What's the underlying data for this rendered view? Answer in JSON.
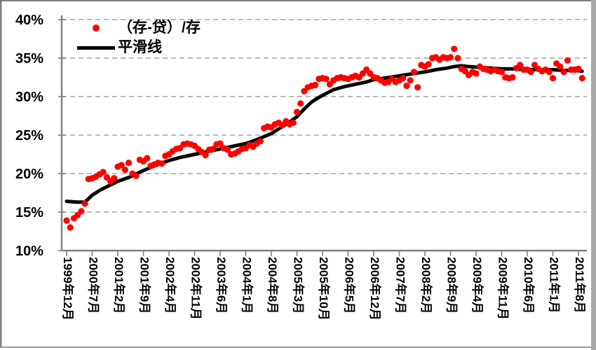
{
  "colors": {
    "scatter": "#ff0000",
    "smooth_line": "#000000",
    "gridline": "#a3a3a3",
    "axis": "#808080",
    "text": "#000000",
    "frame_border": "#7f7f7f",
    "frame_right_bar": "#a9a9a9",
    "background": "#ffffff"
  },
  "legend": {
    "scatter_label": "（存-贷）/存",
    "line_label": "平滑线"
  },
  "chart_data": {
    "type": "scatter",
    "title": "",
    "xlabel": "",
    "ylabel": "",
    "grid": "dashed-horizontal",
    "legend_position": "top-left",
    "y_axis": {
      "unit": "%",
      "min": 10,
      "max": 40,
      "tick_step": 5,
      "tick_labels": [
        "40%",
        "35%",
        "30%",
        "25%",
        "20%",
        "15%",
        "10%"
      ],
      "tick_values": [
        40,
        35,
        30,
        25,
        20,
        15,
        10
      ],
      "gridline_values": [
        40,
        35,
        30,
        25,
        20,
        15
      ]
    },
    "x_axis": {
      "tick_labels": [
        "1999年12月",
        "2000年7月",
        "2001年2月",
        "2001年9月",
        "2002年4月",
        "2002年11月",
        "2003年6月",
        "2004年1月",
        "2004年8月",
        "2005年3月",
        "2005年10月",
        "2006年5月",
        "2006年12月",
        "2007年7月",
        "2008年2月",
        "2008年9月",
        "2009年4月",
        "2009年11月",
        "2010年6月",
        "2011年1月",
        "2011年8月"
      ],
      "months_per_tick": 7,
      "label_rotation_deg": 90
    },
    "series": [
      {
        "name": "（存-贷）/存",
        "type": "scatter",
        "color": "#ff0000",
        "start_month": "1999年12月",
        "frequency": "monthly",
        "values_pct": [
          13.9,
          13.0,
          14.2,
          14.6,
          15.1,
          16.1,
          19.3,
          19.4,
          19.6,
          19.9,
          20.2,
          19.5,
          19.0,
          19.4,
          20.9,
          21.1,
          20.5,
          21.4,
          20.0,
          19.7,
          21.8,
          21.6,
          22.0,
          21.0,
          21.2,
          21.4,
          21.3,
          22.3,
          22.5,
          22.9,
          23.2,
          23.3,
          23.8,
          23.9,
          23.8,
          23.6,
          23.2,
          22.8,
          22.4,
          23.1,
          23.2,
          23.8,
          23.9,
          23.3,
          23.1,
          22.5,
          22.6,
          22.9,
          23.2,
          23.3,
          23.7,
          23.5,
          23.9,
          24.2,
          25.9,
          26.1,
          26.0,
          26.4,
          26.6,
          26.3,
          26.8,
          26.4,
          26.6,
          28.0,
          29.1,
          30.7,
          31.2,
          31.4,
          31.5,
          32.3,
          32.4,
          32.3,
          31.6,
          32.1,
          32.4,
          32.5,
          32.4,
          32.3,
          32.5,
          32.7,
          32.5,
          33.0,
          33.5,
          33.0,
          32.5,
          32.4,
          32.1,
          31.8,
          31.9,
          32.3,
          31.9,
          32.1,
          32.4,
          31.4,
          32.1,
          33.2,
          31.2,
          34.1,
          33.9,
          34.2,
          35.0,
          35.1,
          34.8,
          35.1,
          35.0,
          35.1,
          36.2,
          35.0,
          33.6,
          33.3,
          32.8,
          33.2,
          33.0,
          33.9,
          33.6,
          33.5,
          33.3,
          33.5,
          33.3,
          33.2,
          32.5,
          32.4,
          32.5,
          33.7,
          34.1,
          33.5,
          33.5,
          33.2,
          34.1,
          33.6,
          33.3,
          33.5,
          33.2,
          32.4,
          34.3,
          33.9,
          33.2,
          34.7,
          33.5,
          33.5,
          33.6,
          32.4
        ]
      },
      {
        "name": "平滑线",
        "type": "line",
        "color": "#000000",
        "anchors_month_pct": [
          [
            0,
            16.4
          ],
          [
            3,
            16.3
          ],
          [
            5,
            16.3
          ],
          [
            7,
            17.2
          ],
          [
            9,
            17.8
          ],
          [
            11,
            18.3
          ],
          [
            14,
            19.0
          ],
          [
            17,
            19.5
          ],
          [
            21,
            20.4
          ],
          [
            24,
            21.0
          ],
          [
            28,
            21.7
          ],
          [
            31,
            22.1
          ],
          [
            35,
            22.5
          ],
          [
            38,
            22.8
          ],
          [
            42,
            23.2
          ],
          [
            45,
            23.5
          ],
          [
            49,
            23.9
          ],
          [
            52,
            24.4
          ],
          [
            56,
            25.2
          ],
          [
            59,
            26.1
          ],
          [
            61,
            26.7
          ],
          [
            63,
            27.4
          ],
          [
            65,
            28.4
          ],
          [
            67,
            29.3
          ],
          [
            69,
            29.9
          ],
          [
            71,
            30.4
          ],
          [
            73,
            30.9
          ],
          [
            76,
            31.3
          ],
          [
            79,
            31.6
          ],
          [
            82,
            31.9
          ],
          [
            84,
            32.2
          ],
          [
            87,
            32.4
          ],
          [
            91,
            32.7
          ],
          [
            95,
            33.0
          ],
          [
            98,
            33.2
          ],
          [
            101,
            33.5
          ],
          [
            104,
            33.7
          ],
          [
            106,
            33.9
          ],
          [
            108,
            34.0
          ],
          [
            110,
            33.9
          ],
          [
            113,
            33.8
          ],
          [
            116,
            33.7
          ],
          [
            119,
            33.6
          ],
          [
            122,
            33.6
          ],
          [
            126,
            33.5
          ],
          [
            130,
            33.5
          ],
          [
            133,
            33.5
          ],
          [
            136,
            33.4
          ],
          [
            139,
            33.4
          ],
          [
            141,
            33.3
          ]
        ]
      }
    ]
  }
}
